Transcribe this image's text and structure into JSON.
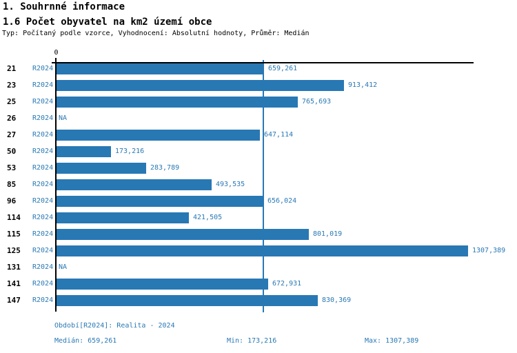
{
  "header": {
    "section_title": "1. Souhrnné informace",
    "chart_title": "1.6 Počet obyvatel na km2 území obce",
    "settings": "Typ: Počítaný podle vzorce, Vyhodnocení: Absolutní hodnoty, Průměr: Medián"
  },
  "chart_data": {
    "type": "bar",
    "orientation": "horizontal",
    "title": "1.6 Počet obyvatel na km2 území obce",
    "x_axis": {
      "zero_label": "0",
      "min": 0,
      "max_estimate": 1326,
      "decimal_separator": "comma"
    },
    "grid": false,
    "legend_position": "none",
    "series_name": "R2024",
    "median_value": 659.261,
    "categories": [
      "21",
      "23",
      "25",
      "26",
      "27",
      "50",
      "53",
      "85",
      "96",
      "114",
      "115",
      "125",
      "131",
      "141",
      "147"
    ],
    "rows": [
      {
        "category": "21",
        "period": "R2024",
        "value": 659.261,
        "display": "659,261"
      },
      {
        "category": "23",
        "period": "R2024",
        "value": 913.412,
        "display": "913,412"
      },
      {
        "category": "25",
        "period": "R2024",
        "value": 765.693,
        "display": "765,693"
      },
      {
        "category": "26",
        "period": "R2024",
        "value": null,
        "display": "NA"
      },
      {
        "category": "27",
        "period": "R2024",
        "value": 647.114,
        "display": "647,114"
      },
      {
        "category": "50",
        "period": "R2024",
        "value": 173.216,
        "display": "173,216"
      },
      {
        "category": "53",
        "period": "R2024",
        "value": 283.789,
        "display": "283,789"
      },
      {
        "category": "85",
        "period": "R2024",
        "value": 493.535,
        "display": "493,535"
      },
      {
        "category": "96",
        "period": "R2024",
        "value": 656.024,
        "display": "656,024"
      },
      {
        "category": "114",
        "period": "R2024",
        "value": 421.505,
        "display": "421,505"
      },
      {
        "category": "115",
        "period": "R2024",
        "value": 801.019,
        "display": "801,019"
      },
      {
        "category": "125",
        "period": "R2024",
        "value": 1307.389,
        "display": "1307,389"
      },
      {
        "category": "131",
        "period": "R2024",
        "value": null,
        "display": "NA"
      },
      {
        "category": "141",
        "period": "R2024",
        "value": 672.931,
        "display": "672,931"
      },
      {
        "category": "147",
        "period": "R2024",
        "value": 830.369,
        "display": "830,369"
      }
    ]
  },
  "footer": {
    "period_line": "Období[R2024]: Realita - 2024",
    "median_stat": "Medián: 659,261",
    "min_stat": "Min: 173,216",
    "max_stat": "Max: 1307,389"
  },
  "colors": {
    "bar": "#2878b4",
    "blue_text": "#2878b4",
    "median_line": "#2878b4",
    "axis": "#000000",
    "background": "#ffffff",
    "heading_text": "#000000"
  }
}
